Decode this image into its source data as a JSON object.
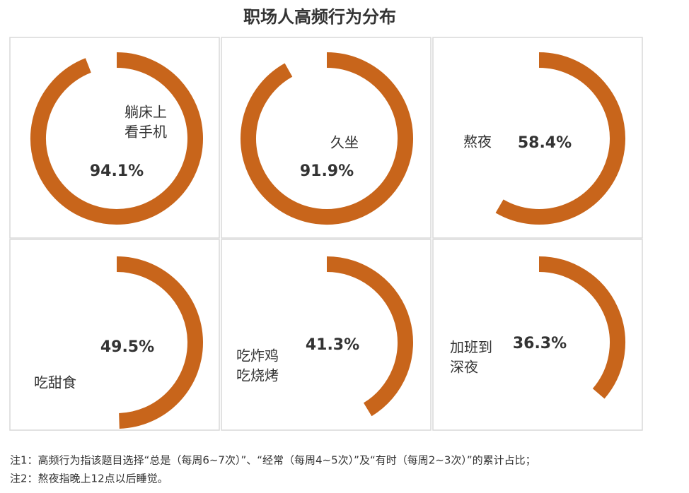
{
  "chart_data": {
    "type": "donut-grid",
    "title": "职场人高频行为分布",
    "categories": [
      [
        "躺床上",
        "看手机"
      ],
      [
        "久坐"
      ],
      [
        "熬夜"
      ],
      [
        "吃甜食"
      ],
      [
        "吃炸鸡",
        "吃烧烤"
      ],
      [
        "加班到",
        "深夜"
      ]
    ],
    "values": [
      94.1,
      91.9,
      58.4,
      49.5,
      41.3,
      36.3
    ],
    "value_labels": [
      "94.1%",
      "91.9%",
      "58.4%",
      "49.5%",
      "41.3%",
      "36.3%"
    ],
    "vlim": [
      0,
      100
    ],
    "color": "#c8651b"
  },
  "notes": [
    "注1：高频行为指该题目选择“总是（每周6~7次）”、“经常（每周4~5次）”及“有时（每周2~3次）”的累计占比；",
    "注2：熬夜指晚上12点以后睡觉。"
  ]
}
